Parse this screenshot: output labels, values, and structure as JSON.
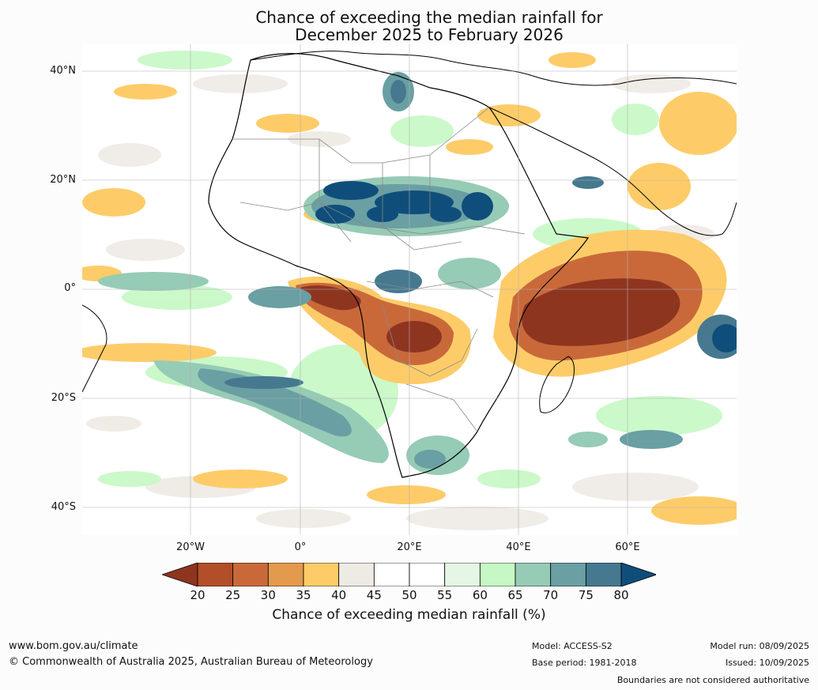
{
  "title": {
    "line1": "Chance of exceeding the median rainfall for",
    "line2": "December 2025 to February 2026"
  },
  "map": {
    "lat_labels": [
      "40°N",
      "20°N",
      "0°",
      "20°S",
      "40°S"
    ],
    "lon_labels": [
      "20°W",
      "0°",
      "20°E",
      "40°E",
      "60°E"
    ]
  },
  "colorbar": {
    "ticks": [
      "20",
      "25",
      "30",
      "35",
      "40",
      "45",
      "50",
      "55",
      "60",
      "65",
      "70",
      "75",
      "80"
    ],
    "colors": [
      "#8e3520",
      "#b24e28",
      "#c9693a",
      "#e39a4c",
      "#fdcc69",
      "#eeeae4",
      "#ffffff",
      "#ffffff",
      "#e5f6e5",
      "#c5f8c4",
      "#96cbb6",
      "#6a9fa3",
      "#46798f",
      "#0f4e7a"
    ],
    "label": "Chance of exceeding median rainfall (%)"
  },
  "footer": {
    "website": "www.bom.gov.au/climate",
    "copyright": "© Commonwealth of Australia 2025, Australian Bureau of Meteorology",
    "model": "Model: ACCESS-S2",
    "base_period": "Base period: 1981-2018",
    "model_run": "Model run: 08/09/2025",
    "issued": "Issued: 10/09/2025",
    "disclaimer": "Boundaries are not considered authoritative"
  }
}
